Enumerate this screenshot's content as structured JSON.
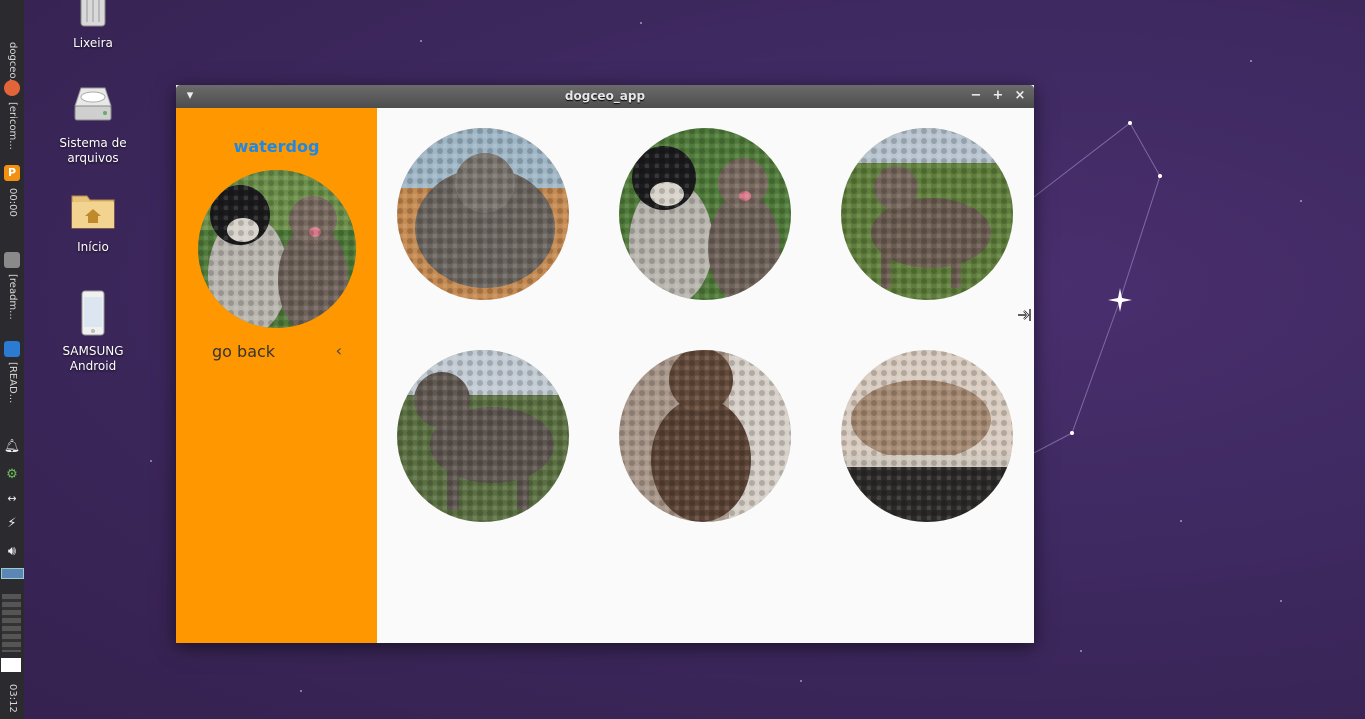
{
  "desktop": {
    "icons": [
      {
        "label": "Lixeira"
      },
      {
        "label": "Sistema de arquivos"
      },
      {
        "label": "Início"
      },
      {
        "label": "SAMSUNG Android"
      }
    ]
  },
  "taskbar": {
    "items": [
      {
        "label": "dogceo..."
      },
      {
        "label": "[ericom..."
      },
      {
        "label": "00:00"
      },
      {
        "label": "[readm..."
      },
      {
        "label": "[READ..."
      }
    ],
    "clock": "03:12"
  },
  "window": {
    "title": "dogceo_app",
    "buttons": {
      "menu": "▾",
      "minimize": "−",
      "maximize": "+",
      "close": "×"
    }
  },
  "app": {
    "breed": "waterdog",
    "go_back": "go back",
    "go_back_icon": "‹",
    "accent_color": "#ff9800",
    "title_color": "#1e88e5",
    "images": [
      {
        "label": "dog-photo-1"
      },
      {
        "label": "dog-photo-2"
      },
      {
        "label": "dog-photo-3"
      },
      {
        "label": "dog-photo-4"
      },
      {
        "label": "dog-photo-5"
      },
      {
        "label": "dog-photo-6"
      }
    ]
  }
}
